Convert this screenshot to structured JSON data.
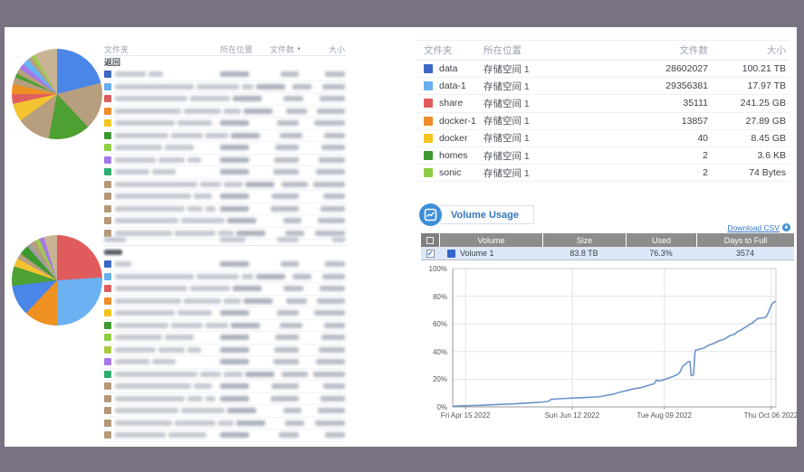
{
  "page_bg": "#7a7282",
  "left_panel": {
    "top_table": {
      "headers": {
        "folder": "文件夹",
        "location": "所在位置",
        "count": "文件数",
        "size": "大小"
      },
      "sort_caret": "▼",
      "back_label": "返回",
      "row_colors": [
        "#3b68c5",
        "#66aef0",
        "#e05c5c",
        "#ef8e2a",
        "#f3c41f",
        "#3e9930",
        "#8fce44",
        "#a678e8",
        "#2eae6e",
        "#b59877",
        "#b59877",
        "#b59877",
        "#b59877",
        "#b59877"
      ]
    },
    "bottom_table": {
      "row_colors": [
        "#3b68c5",
        "#66aef0",
        "#e05c5c",
        "#ef8e2a",
        "#f3c41f",
        "#3e9930",
        "#8fce44",
        "#aacb3f",
        "#a678e8",
        "#2eae6e",
        "#b59877",
        "#b59877",
        "#b59877",
        "#b59877",
        "#b59877"
      ]
    }
  },
  "right_panel": {
    "folders_table": {
      "headers": {
        "folder": "文件夹",
        "location": "所在位置",
        "count": "文件数",
        "size": "大小"
      },
      "rows": [
        {
          "color": "#3b68c5",
          "name": "data",
          "location": "存储空间 1",
          "count": "28602027",
          "size": "100.21 TB"
        },
        {
          "color": "#66aef0",
          "name": "data-1",
          "location": "存储空间 1",
          "count": "29356381",
          "size": "17.97 TB"
        },
        {
          "color": "#e05c5c",
          "name": "share",
          "location": "存储空间 1",
          "count": "35111",
          "size": "241.25 GB"
        },
        {
          "color": "#ef8e2a",
          "name": "docker-1",
          "location": "存储空间 1",
          "count": "13857",
          "size": "27.89 GB"
        },
        {
          "color": "#f3c41f",
          "name": "docker",
          "location": "存储空间 1",
          "count": "40",
          "size": "8.45 GB"
        },
        {
          "color": "#3e9930",
          "name": "homes",
          "location": "存储空间 1",
          "count": "2",
          "size": "3.6 KB"
        },
        {
          "color": "#8fce44",
          "name": "sonic",
          "location": "存储空间 1",
          "count": "2",
          "size": "74 Bytes"
        }
      ]
    },
    "volume_usage": {
      "title": "Volume Usage",
      "download_csv_label": "Download CSV",
      "table": {
        "headers": {
          "volume": "Volume",
          "size": "Size",
          "used": "Used",
          "days": "Days to Full"
        },
        "rows": [
          {
            "color": "#3465cf",
            "name": "Volume 1",
            "size": "83.8 TB",
            "used": "76.3%",
            "days": "3574",
            "checked": "✓"
          }
        ]
      }
    }
  },
  "chart_data": [
    {
      "type": "pie",
      "id": "pie-top",
      "legend_position": "table-right",
      "slices": [
        {
          "color": "#4a86e8",
          "value": 21
        },
        {
          "color": "#b79e7e",
          "value": 17
        },
        {
          "color": "#4da032",
          "value": 15
        },
        {
          "color": "#b79e7e",
          "value": 12
        },
        {
          "color": "#f3c330",
          "value": 6.5
        },
        {
          "color": "#e06060",
          "value": 3.5
        },
        {
          "color": "#ef9022",
          "value": 3.5
        },
        {
          "color": "#b79e7e",
          "value": 2.5
        },
        {
          "color": "#4da032",
          "value": 1.5
        },
        {
          "color": "#b79e7e",
          "value": 2
        },
        {
          "color": "#a678e8",
          "value": 2
        },
        {
          "color": "#6cb2f2",
          "value": 2.5
        },
        {
          "color": "#b79e7e",
          "value": 1.5
        },
        {
          "color": "#9ccf4a",
          "value": 1.3
        },
        {
          "color": "#c9b595",
          "value": 8.2
        }
      ]
    },
    {
      "type": "pie",
      "id": "pie-bottom",
      "legend_position": "table-right",
      "slices": [
        {
          "color": "#e05c5c",
          "value": 24
        },
        {
          "color": "#6cb2f2",
          "value": 26
        },
        {
          "color": "#ef9022",
          "value": 12
        },
        {
          "color": "#4a86e8",
          "value": 11
        },
        {
          "color": "#4da032",
          "value": 7
        },
        {
          "color": "#f3c330",
          "value": 3
        },
        {
          "color": "#b79e7e",
          "value": 2
        },
        {
          "color": "#3e9930",
          "value": 3.5
        },
        {
          "color": "#9e9e9e",
          "value": 1.5
        },
        {
          "color": "#b79e7e",
          "value": 2
        },
        {
          "color": "#9ccf4a",
          "value": 1.5
        },
        {
          "color": "#a678e8",
          "value": 1.8
        },
        {
          "color": "#c9b595",
          "value": 4.7
        }
      ]
    },
    {
      "type": "line",
      "id": "volume-usage-trend",
      "ylim": [
        0,
        100
      ],
      "grid": true,
      "yticks": [
        "0%",
        "20%",
        "40%",
        "60%",
        "80%",
        "100%"
      ],
      "xticks": [
        {
          "label": "Fri Apr 15 2022",
          "pos": 0.04
        },
        {
          "label": "Sun Jun 12 2022",
          "pos": 0.37
        },
        {
          "label": "Tue Aug 09 2022",
          "pos": 0.655
        },
        {
          "label": "Thu Oct 06 2022",
          "pos": 0.985
        }
      ],
      "series": [
        {
          "name": "Volume 1",
          "color": "#6e93cc",
          "points": [
            [
              0,
              0.5
            ],
            [
              0.03,
              0.8
            ],
            [
              0.06,
              1
            ],
            [
              0.09,
              1.2
            ],
            [
              0.12,
              1.5
            ],
            [
              0.15,
              1.8
            ],
            [
              0.18,
              2.1
            ],
            [
              0.21,
              2.5
            ],
            [
              0.24,
              2.9
            ],
            [
              0.26,
              3.2
            ],
            [
              0.28,
              3.6
            ],
            [
              0.295,
              4
            ],
            [
              0.305,
              5.4
            ],
            [
              0.33,
              5.9
            ],
            [
              0.36,
              6.3
            ],
            [
              0.39,
              6.6
            ],
            [
              0.42,
              6.9
            ],
            [
              0.44,
              7.2
            ],
            [
              0.46,
              7.5
            ],
            [
              0.472,
              8.2
            ],
            [
              0.485,
              8.7
            ],
            [
              0.5,
              9.4
            ],
            [
              0.515,
              10.5
            ],
            [
              0.53,
              11.3
            ],
            [
              0.545,
              12.2
            ],
            [
              0.56,
              13.1
            ],
            [
              0.575,
              13.6
            ],
            [
              0.59,
              14.4
            ],
            [
              0.6,
              15.2
            ],
            [
              0.612,
              16
            ],
            [
              0.62,
              16.4
            ],
            [
              0.625,
              17.2
            ],
            [
              0.63,
              19.4
            ],
            [
              0.635,
              18.8
            ],
            [
              0.645,
              19.1
            ],
            [
              0.655,
              19.8
            ],
            [
              0.665,
              20.6
            ],
            [
              0.675,
              21.4
            ],
            [
              0.685,
              22.3
            ],
            [
              0.693,
              23.2
            ],
            [
              0.7,
              24.3
            ],
            [
              0.705,
              26
            ],
            [
              0.709,
              28.2
            ],
            [
              0.713,
              29.9
            ],
            [
              0.718,
              30.4
            ],
            [
              0.722,
              31.2
            ],
            [
              0.726,
              32.2
            ],
            [
              0.73,
              32.9
            ],
            [
              0.734,
              32.7
            ],
            [
              0.736,
              27
            ],
            [
              0.738,
              22.6
            ],
            [
              0.742,
              22.9
            ],
            [
              0.745,
              23.3
            ],
            [
              0.747,
              30
            ],
            [
              0.749,
              38
            ],
            [
              0.751,
              40.9
            ],
            [
              0.758,
              41.4
            ],
            [
              0.768,
              41.9
            ],
            [
              0.778,
              42.6
            ],
            [
              0.788,
              44.1
            ],
            [
              0.798,
              45.1
            ],
            [
              0.808,
              45.9
            ],
            [
              0.818,
              47.1
            ],
            [
              0.828,
              48.1
            ],
            [
              0.838,
              48.7
            ],
            [
              0.848,
              50.1
            ],
            [
              0.858,
              51.6
            ],
            [
              0.868,
              52.2
            ],
            [
              0.878,
              53.7
            ],
            [
              0.885,
              54.9
            ],
            [
              0.892,
              55.4
            ],
            [
              0.898,
              56.6
            ],
            [
              0.905,
              57.6
            ],
            [
              0.912,
              58.4
            ],
            [
              0.917,
              59.6
            ],
            [
              0.925,
              60.2
            ],
            [
              0.932,
              61.6
            ],
            [
              0.938,
              62.8
            ],
            [
              0.944,
              63.9
            ],
            [
              0.952,
              64.1
            ],
            [
              0.96,
              64.4
            ],
            [
              0.967,
              64.8
            ],
            [
              0.972,
              65.8
            ],
            [
              0.977,
              68.5
            ],
            [
              0.982,
              71.5
            ],
            [
              0.987,
              74
            ],
            [
              0.993,
              75.6
            ],
            [
              1,
              76.3
            ]
          ]
        }
      ]
    }
  ]
}
